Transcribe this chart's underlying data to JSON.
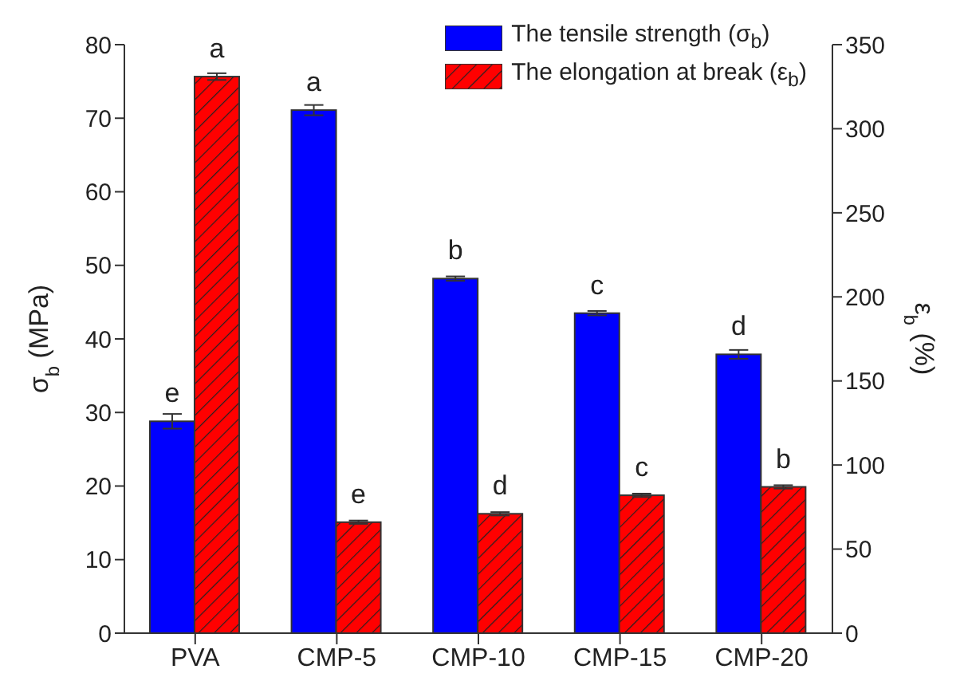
{
  "chart_data": {
    "type": "bar",
    "categories": [
      "PVA",
      "CMP-5",
      "CMP-10",
      "CMP-15",
      "CMP-20"
    ],
    "ylabel": "σ$_{b}$ (MPa)",
    "y2label": "ε$_{b}$ (%)",
    "series": [
      {
        "name": "The tensile strength (σ$_{b}$)",
        "color": "#0000ff",
        "values": [
          28.8,
          71.1,
          48.2,
          43.5,
          37.9
        ],
        "errors": [
          1,
          0.7,
          0.3,
          0.3,
          0.6
        ],
        "value_labels": [
          "e",
          "a",
          "b",
          "c",
          "d"
        ]
      },
      {
        "name": "The elongation at break (ε$_{b}$)",
        "color": "#ff0000",
        "axis": "y2",
        "values": [
          331,
          66,
          71,
          82,
          87
        ],
        "errors": [
          2,
          1,
          1,
          1,
          1
        ],
        "value_labels": [
          "a",
          "e",
          "d",
          "c",
          "b"
        ]
      }
    ],
    "ylim": [
      0,
      80
    ],
    "yticks": [
      0,
      10,
      20,
      30,
      40,
      50,
      60,
      70,
      80
    ],
    "y2lim": [
      0,
      350
    ],
    "y2ticks": [
      0,
      50,
      100,
      150,
      200,
      250,
      300,
      350
    ],
    "legend": "top right",
    "grid": false
  }
}
